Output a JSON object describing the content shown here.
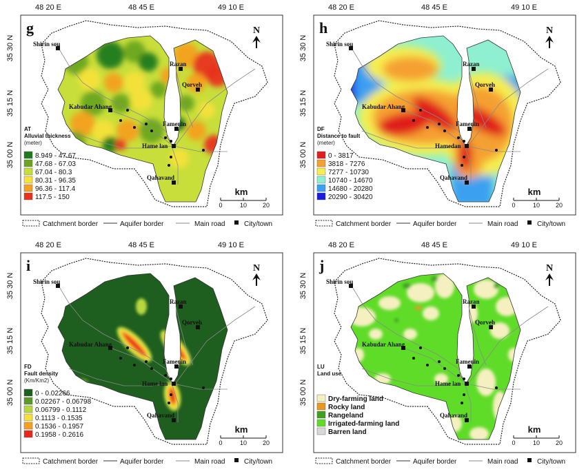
{
  "coordinates": {
    "lon": [
      "48 20 E",
      "48 45 E",
      "49 10 E"
    ],
    "lat": [
      "35 30 N",
      "35 15 N",
      "35 00 N"
    ]
  },
  "cities": [
    "Shirin sou",
    "Razan",
    "Qorveh",
    "Kabudar Ahang",
    "Famenin",
    "Hamedan",
    "Qahavand"
  ],
  "panel_cities": {
    "g": [
      "Shirin sou",
      "Razan",
      "Qorveh",
      "Kabudar Ahang",
      "Famenin",
      "Hame lan",
      "Qahavand"
    ],
    "h": [
      "Shirin sou",
      "Razan",
      "Qorveh",
      "Kabudar Ahang",
      "Famenin",
      "Hamedan",
      "Qahavand"
    ],
    "i": [
      "Shirin sou",
      "Razan",
      "Qorveh",
      "Kabudar Ahang",
      "Famenin",
      "Hame lan",
      "Qahavand"
    ],
    "j": [
      "Shirin sou",
      "Razan",
      "Qorveh",
      "Kabudar Ahang",
      "Famenin",
      "Hame lan",
      "Qahavand"
    ]
  },
  "north_label": "N",
  "scale": {
    "unit": "km",
    "ticks": [
      "0",
      "10",
      "20"
    ]
  },
  "bottom_legend": {
    "catchment": "Catchment border",
    "aquifer": "Aquifer border",
    "road": "Main road",
    "city": "City/town"
  },
  "panels": [
    {
      "letter": "g",
      "code": "AT",
      "title": "Alluvial thickness",
      "unit": "(meter)",
      "classes": [
        {
          "label": "8.949 - 47.67",
          "color": "#1e7a1e"
        },
        {
          "label": "47.68 - 67.03",
          "color": "#6aa520"
        },
        {
          "label": "67.04 - 80.3",
          "color": "#c8de3a"
        },
        {
          "label": "80.31 - 96.35",
          "color": "#f5e23a"
        },
        {
          "label": "96.36 - 117.4",
          "color": "#f4a020"
        },
        {
          "label": "117.5 - 150",
          "color": "#e8321c"
        }
      ]
    },
    {
      "letter": "h",
      "code": "DF",
      "title": "Distance to fault",
      "unit": "(meter)",
      "classes": [
        {
          "label": "0 - 3817",
          "color": "#e01e1e"
        },
        {
          "label": "3818 - 7276",
          "color": "#f5a030"
        },
        {
          "label": "7277 - 10730",
          "color": "#f5ee50"
        },
        {
          "label": "10740 - 14670",
          "color": "#8ef0d0"
        },
        {
          "label": "14680 - 20280",
          "color": "#3aa0f0"
        },
        {
          "label": "20290 - 30420",
          "color": "#1a1ae0"
        }
      ]
    },
    {
      "letter": "i",
      "code": "FD",
      "title": "Fault density",
      "unit": "(Km/Km2)",
      "classes": [
        {
          "label": "0 - 0.02266",
          "color": "#1e5e1e"
        },
        {
          "label": "0.02267 - 0.06798",
          "color": "#5a9a2a"
        },
        {
          "label": "0.06799 - 0.1112",
          "color": "#b8d840"
        },
        {
          "label": "0.1113 - 0.1535",
          "color": "#f5e040"
        },
        {
          "label": "0.1536 - 0.1957",
          "color": "#f5a020"
        },
        {
          "label": "0.1958 - 0.2616",
          "color": "#e8281c"
        }
      ]
    },
    {
      "letter": "j",
      "code": "LU",
      "title": "Land use",
      "unit": "",
      "classes": [
        {
          "label": "Dry-farming land",
          "color": "#f5f0c0"
        },
        {
          "label": "Rocky land",
          "color": "#e89a20"
        },
        {
          "label": "Rangeland",
          "color": "#40a020"
        },
        {
          "label": "Irrigated-farming land",
          "color": "#5fdc28"
        },
        {
          "label": "Barren land",
          "color": "#d8d8d8"
        }
      ]
    }
  ]
}
